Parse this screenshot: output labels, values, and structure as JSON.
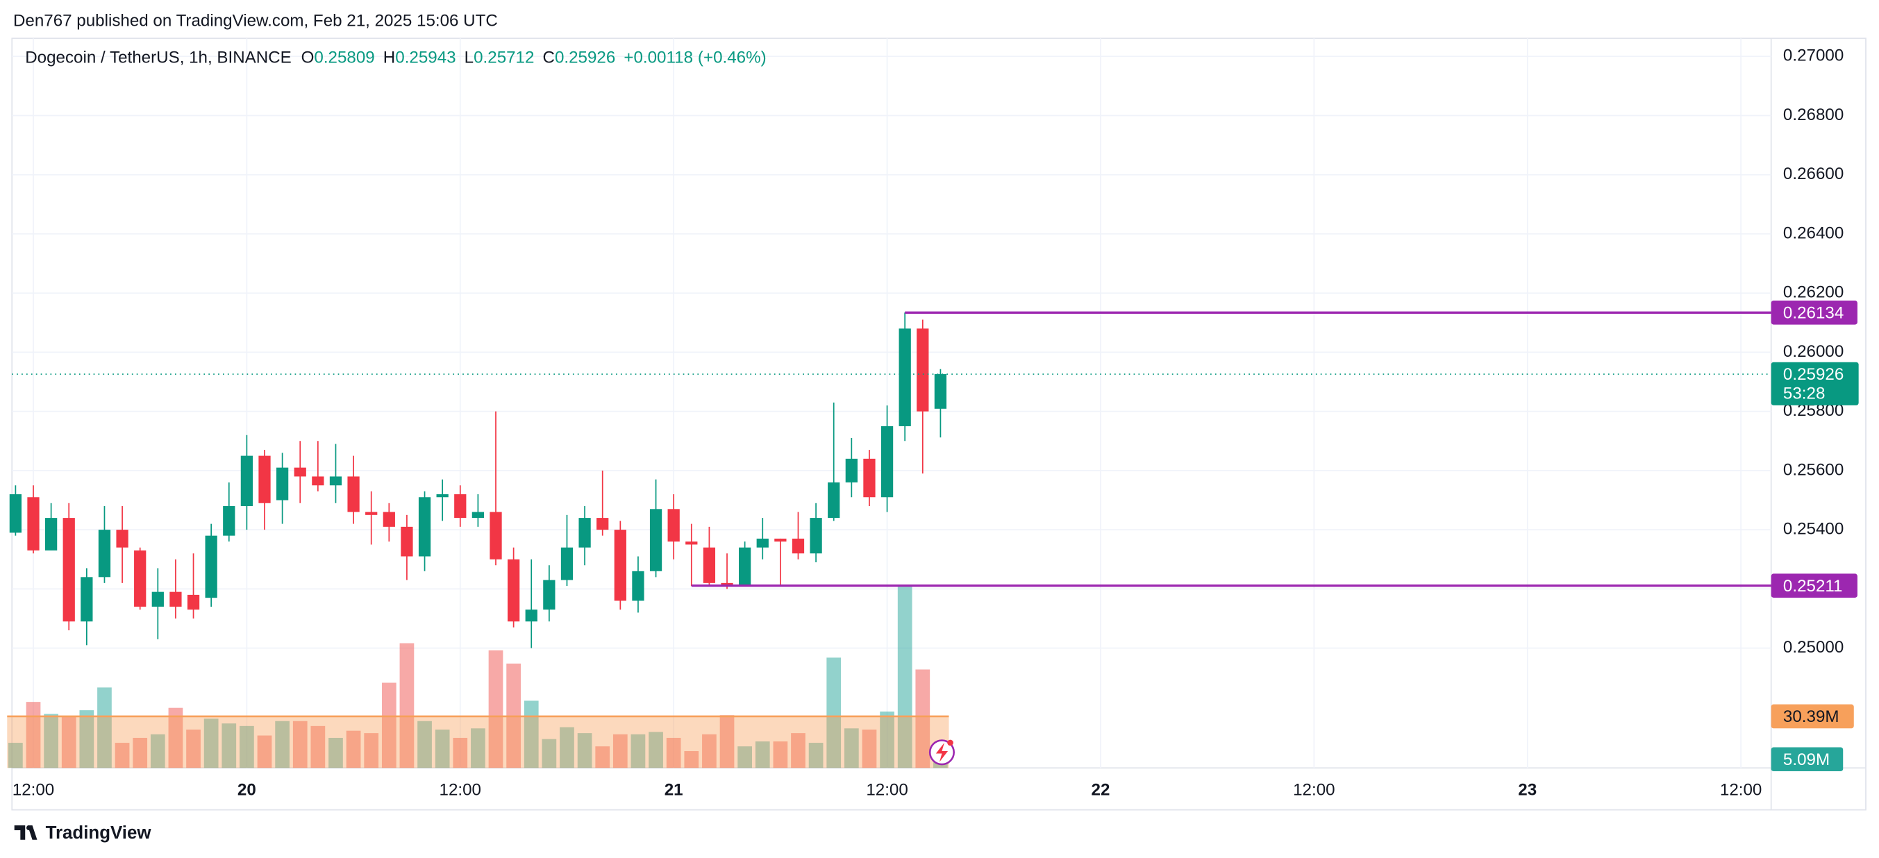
{
  "header": {
    "text": "Den767 published on TradingView.com, Feb 21, 2025 15:06 UTC"
  },
  "footer": {
    "brand": "TradingView"
  },
  "chart_data": [
    {
      "type": "candlestick",
      "title": "Dogecoin / TetherUS, 1h, BINANCE",
      "legend": {
        "items": [
          {
            "key": "O",
            "value": 0.25809
          },
          {
            "key": "H",
            "value": 0.25943
          },
          {
            "key": "L",
            "value": 0.25712
          },
          {
            "key": "C",
            "value": 0.25926
          }
        ],
        "change": "+0.00118",
        "change_percent": "(+0.46%)"
      },
      "x": [
        "2025-02-19T11:00",
        "2025-02-19T12:00",
        "2025-02-19T13:00",
        "2025-02-19T14:00",
        "2025-02-19T15:00",
        "2025-02-19T16:00",
        "2025-02-19T17:00",
        "2025-02-19T18:00",
        "2025-02-19T19:00",
        "2025-02-19T20:00",
        "2025-02-19T21:00",
        "2025-02-19T22:00",
        "2025-02-19T23:00",
        "2025-02-20T00:00",
        "2025-02-20T01:00",
        "2025-02-20T02:00",
        "2025-02-20T03:00",
        "2025-02-20T04:00",
        "2025-02-20T05:00",
        "2025-02-20T06:00",
        "2025-02-20T07:00",
        "2025-02-20T08:00",
        "2025-02-20T09:00",
        "2025-02-20T10:00",
        "2025-02-20T11:00",
        "2025-02-20T12:00",
        "2025-02-20T13:00",
        "2025-02-20T14:00",
        "2025-02-20T15:00",
        "2025-02-20T16:00",
        "2025-02-20T17:00",
        "2025-02-20T18:00",
        "2025-02-20T19:00",
        "2025-02-20T20:00",
        "2025-02-20T21:00",
        "2025-02-20T22:00",
        "2025-02-20T23:00",
        "2025-02-21T00:00",
        "2025-02-21T01:00",
        "2025-02-21T02:00",
        "2025-02-21T03:00",
        "2025-02-21T04:00",
        "2025-02-21T05:00",
        "2025-02-21T06:00",
        "2025-02-21T07:00",
        "2025-02-21T08:00",
        "2025-02-21T09:00",
        "2025-02-21T10:00",
        "2025-02-21T11:00",
        "2025-02-21T12:00",
        "2025-02-21T13:00",
        "2025-02-21T14:00",
        "2025-02-21T15:00"
      ],
      "open": [
        0.2539,
        0.2551,
        0.2533,
        0.2544,
        0.2509,
        0.2524,
        0.254,
        0.2533,
        0.2514,
        0.2519,
        0.2518,
        0.2517,
        0.2538,
        0.2548,
        0.2565,
        0.255,
        0.2561,
        0.2558,
        0.2555,
        0.2558,
        0.2546,
        0.2546,
        0.2541,
        0.2531,
        0.2551,
        0.2552,
        0.2544,
        0.2546,
        0.253,
        0.2509,
        0.2513,
        0.2523,
        0.2534,
        0.2544,
        0.254,
        0.2516,
        0.2526,
        0.2547,
        0.2536,
        0.2534,
        0.2522,
        0.2521,
        0.2534,
        0.2537,
        0.2537,
        0.2532,
        0.2544,
        0.2556,
        0.2564,
        0.2551,
        0.2575,
        0.2608,
        0.25809
      ],
      "high": [
        0.2555,
        0.2555,
        0.2549,
        0.2549,
        0.2527,
        0.2548,
        0.2548,
        0.2534,
        0.2527,
        0.253,
        0.2532,
        0.2542,
        0.2556,
        0.2572,
        0.2567,
        0.2566,
        0.257,
        0.257,
        0.2569,
        0.2565,
        0.2553,
        0.2549,
        0.2545,
        0.2553,
        0.2557,
        0.2555,
        0.2552,
        0.258,
        0.2534,
        0.253,
        0.2528,
        0.2545,
        0.2548,
        0.256,
        0.2543,
        0.2531,
        0.2557,
        0.2552,
        0.2542,
        0.2541,
        0.2532,
        0.2536,
        0.2544,
        0.2537,
        0.2546,
        0.2549,
        0.2583,
        0.2571,
        0.2567,
        0.2582,
        0.26134,
        0.2611,
        0.25943
      ],
      "low": [
        0.2538,
        0.2532,
        0.2533,
        0.2506,
        0.2501,
        0.2522,
        0.2522,
        0.2513,
        0.2503,
        0.251,
        0.251,
        0.2514,
        0.2536,
        0.254,
        0.254,
        0.2542,
        0.2549,
        0.2553,
        0.2549,
        0.2542,
        0.2535,
        0.2536,
        0.2523,
        0.2526,
        0.2543,
        0.2541,
        0.2541,
        0.2528,
        0.2507,
        0.25,
        0.2509,
        0.2521,
        0.2528,
        0.2538,
        0.2513,
        0.2512,
        0.2524,
        0.253,
        0.2521,
        0.2521,
        0.252,
        0.2521,
        0.253,
        0.2521,
        0.253,
        0.2529,
        0.2543,
        0.2551,
        0.2548,
        0.2546,
        0.257,
        0.2559,
        0.25712
      ],
      "close": [
        0.2552,
        0.2533,
        0.2544,
        0.2509,
        0.2524,
        0.254,
        0.2534,
        0.2514,
        0.2519,
        0.2514,
        0.2513,
        0.2538,
        0.2548,
        0.2565,
        0.2549,
        0.2561,
        0.2558,
        0.2555,
        0.2558,
        0.2546,
        0.2545,
        0.2541,
        0.2531,
        0.2551,
        0.2552,
        0.2544,
        0.2546,
        0.253,
        0.2509,
        0.2513,
        0.2523,
        0.2534,
        0.2544,
        0.254,
        0.2516,
        0.2526,
        0.2547,
        0.2536,
        0.2535,
        0.2522,
        0.2521,
        0.2534,
        0.2537,
        0.2536,
        0.2532,
        0.2544,
        0.2556,
        0.2564,
        0.2551,
        0.2575,
        0.2608,
        0.258,
        0.25926
      ],
      "up_color": "#089981",
      "down_color": "#f23645",
      "xlim": [
        "2025-02-19T10:48",
        "2025-02-23T13:42"
      ],
      "ylim": [
        0.24595,
        0.27061
      ],
      "yticks": [
        {
          "value": 0.25,
          "label": "0.25000"
        },
        {
          "value": 0.252,
          "label": "0.25200"
        },
        {
          "value": 0.254,
          "label": "0.25400"
        },
        {
          "value": 0.256,
          "label": "0.25600"
        },
        {
          "value": 0.258,
          "label": "0.25800"
        },
        {
          "value": 0.26,
          "label": "0.26000"
        },
        {
          "value": 0.262,
          "label": "0.26200"
        },
        {
          "value": 0.264,
          "label": "0.26400"
        },
        {
          "value": 0.266,
          "label": "0.26600"
        },
        {
          "value": 0.268,
          "label": "0.26800"
        },
        {
          "value": 0.27,
          "label": "0.27000"
        }
      ],
      "xticks": [
        {
          "value": "2025-02-19T12:00",
          "label": "12:00"
        },
        {
          "value": "2025-02-20T00:00",
          "label": "20"
        },
        {
          "value": "2025-02-20T12:00",
          "label": "12:00"
        },
        {
          "value": "2025-02-21T00:00",
          "label": "21"
        },
        {
          "value": "2025-02-21T12:00",
          "label": "12:00"
        },
        {
          "value": "2025-02-22T00:00",
          "label": "22"
        },
        {
          "value": "2025-02-22T12:00",
          "label": "12:00"
        },
        {
          "value": "2025-02-23T00:00",
          "label": "23"
        },
        {
          "value": "2025-02-23T12:00",
          "label": "12:00"
        }
      ],
      "grid": true,
      "levels": [
        {
          "value": 0.26134,
          "label": "0.26134",
          "start": "2025-02-21T13:00",
          "color": "#9c27b0"
        },
        {
          "value": 0.25211,
          "label": "0.25211",
          "start": "2025-02-21T01:00",
          "color": "#9c27b0"
        }
      ],
      "last_price": {
        "value": 0.25926,
        "label": "0.25926",
        "countdown": "53:28"
      }
    },
    {
      "type": "bar",
      "values": [
        14.8,
        38.9,
        31.8,
        30.4,
        34,
        47.4,
        14.8,
        17.7,
        19.8,
        35.4,
        22.6,
        29,
        26.2,
        24.7,
        19.1,
        27.6,
        27.6,
        24.7,
        17.7,
        21.9,
        20.5,
        50.2,
        73.5,
        27.6,
        22.6,
        17.7,
        23.3,
        69.3,
        61.5,
        39.6,
        17,
        24,
        20.5,
        12.7,
        19.8,
        19.8,
        21.2,
        17.7,
        9.9,
        19.8,
        31.1,
        12.7,
        15.6,
        15.6,
        20.5,
        14.8,
        65,
        23.3,
        22.6,
        33.2,
        107.5,
        58,
        5.09
      ],
      "ylim": [
        0,
        430
      ],
      "up_color": "#26a69a",
      "down_color": "#ef5350",
      "ma": {
        "value": 30.39,
        "label": "30.39M",
        "color": "#f7a05b"
      },
      "last_value": {
        "value": 5.09,
        "label": "5.09M"
      }
    }
  ]
}
